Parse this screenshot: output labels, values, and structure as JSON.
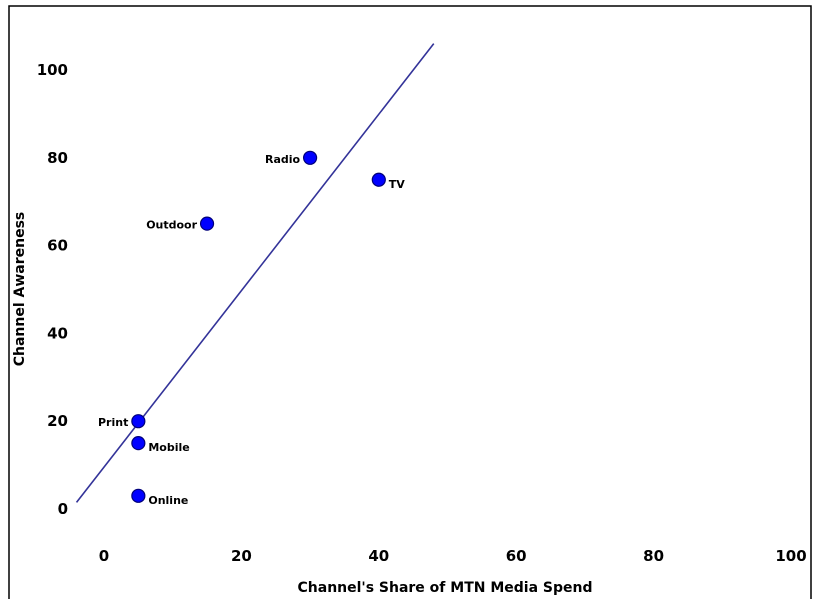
{
  "chart_data": {
    "type": "scatter",
    "xlabel": "Channel's Share of MTN Media Spend",
    "ylabel": "Channel Awareness",
    "xlim": [
      -5,
      100
    ],
    "ylim": [
      0,
      105
    ],
    "xticks": [
      0,
      20,
      40,
      60,
      80,
      100
    ],
    "yticks": [
      0,
      20,
      40,
      60,
      80,
      100
    ],
    "grid": false,
    "legend": "none",
    "marker_color": "#0000ff",
    "marker_edge_color": "#00007a",
    "trendline_color": "#333399",
    "trendline": {
      "x": [
        -4,
        48
      ],
      "y": [
        1.5,
        106
      ]
    },
    "points": [
      {
        "label": "Radio",
        "x": 30,
        "y": 80,
        "label_side": "left"
      },
      {
        "label": "TV",
        "x": 40,
        "y": 75,
        "label_side": "right"
      },
      {
        "label": "Outdoor",
        "x": 15,
        "y": 65,
        "label_side": "left"
      },
      {
        "label": "Print",
        "x": 5,
        "y": 20,
        "label_side": "left"
      },
      {
        "label": "Mobile",
        "x": 5,
        "y": 15,
        "label_side": "right"
      },
      {
        "label": "Online",
        "x": 5,
        "y": 3,
        "label_side": "right"
      }
    ]
  }
}
